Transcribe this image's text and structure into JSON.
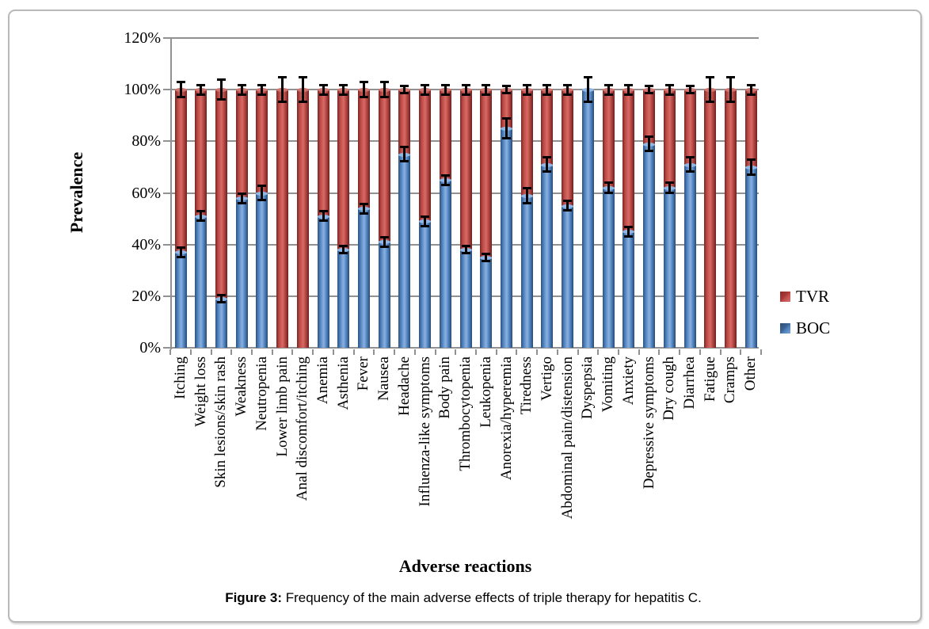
{
  "figure": {
    "caption_label": "Figure 3:",
    "caption_text": " Frequency of the main adverse effects of triple therapy for hepatitis C."
  },
  "legend": {
    "items": [
      {
        "label": "TVR",
        "color": "#c0504d"
      },
      {
        "label": "BOC",
        "color": "#4f81bd"
      }
    ]
  },
  "y_axis": {
    "tick_labels": [
      "0%",
      "20%",
      "40%",
      "60%",
      "80%",
      "100%",
      "120%"
    ]
  },
  "chart_data": {
    "type": "bar",
    "stacked": true,
    "title": "",
    "xlabel": "Adverse reactions",
    "ylabel": "Prevalence",
    "ylim": [
      0,
      120
    ],
    "ytick_step": 20,
    "ytick_format": "percent",
    "grid": true,
    "legend_position": "right",
    "bar_colors": {
      "TVR": "#c0504d",
      "BOC": "#4f81bd"
    },
    "error_bar_color": "#000000",
    "categories": [
      "Itching",
      "Weight loss",
      "Skin lesions/skin rash",
      "Weakness",
      "Neutropenia",
      "Lower limb pain",
      "Anal discomfort/itching",
      "Anemia",
      "Asthenia",
      "Fever",
      "Nausea",
      "Headache",
      "Influenza-like symptoms",
      "Body pain",
      "Thrombocytopenia",
      "Leukopenia",
      "Anorexia/hyperemia",
      "Tiredness",
      "Vertigo",
      "Abdominal pain/distension",
      "Dyspepsia",
      "Vomiting",
      "Anxiety",
      "Depressive symptoms",
      "Dry cough",
      "Diarrhea",
      "Fatigue",
      "Cramps",
      "Other"
    ],
    "series": [
      {
        "name": "BOC",
        "values": [
          37,
          51,
          19,
          58,
          60,
          0,
          0,
          51,
          38,
          54,
          41,
          75,
          49,
          65,
          38,
          35,
          85,
          59,
          71,
          55,
          100,
          62,
          45,
          79,
          62,
          71,
          0,
          0,
          70
        ]
      },
      {
        "name": "TVR",
        "values": [
          63,
          49,
          81,
          42,
          40,
          100,
          100,
          49,
          62,
          46,
          59,
          25,
          51,
          35,
          62,
          65,
          15,
          41,
          29,
          45,
          0,
          38,
          55,
          21,
          38,
          29,
          100,
          100,
          30
        ]
      }
    ],
    "stack_total": [
      100,
      100,
      100,
      100,
      100,
      100,
      100,
      100,
      100,
      100,
      100,
      100,
      100,
      100,
      100,
      100,
      100,
      100,
      100,
      100,
      100,
      100,
      100,
      100,
      100,
      100,
      100,
      100,
      100
    ],
    "error_top": [
      3,
      2,
      4,
      2,
      2,
      5,
      5,
      2,
      2,
      3,
      3,
      1.5,
      2,
      2,
      2,
      2,
      1.5,
      2,
      2,
      2,
      5,
      2,
      2,
      1.5,
      2,
      1.5,
      5,
      5,
      2
    ],
    "error_boc": [
      2,
      2,
      1.5,
      2,
      3,
      null,
      null,
      2,
      1.5,
      2,
      2,
      3,
      2,
      2,
      1.5,
      1.5,
      4,
      3,
      3,
      2,
      null,
      2,
      2,
      3,
      2,
      3,
      null,
      null,
      3
    ]
  }
}
